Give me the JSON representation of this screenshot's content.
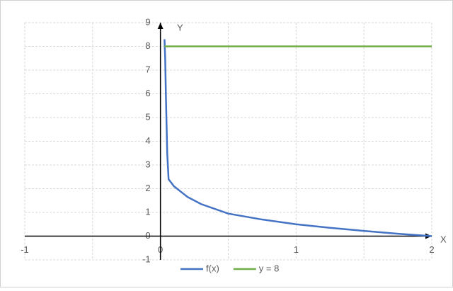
{
  "chart_data": {
    "type": "line",
    "x_label": "X",
    "y_label": "Y",
    "xlim": [
      -1,
      2
    ],
    "ylim": [
      -1,
      9
    ],
    "xticks": [
      -1,
      0,
      1,
      2
    ],
    "yticks": [
      -1,
      0,
      1,
      2,
      3,
      4,
      5,
      6,
      7,
      8,
      9
    ],
    "x_grid_step": 0.5,
    "grid": true,
    "legend": "bottom",
    "series": [
      {
        "name": "f(x)",
        "color": "#4472c4",
        "x": [
          0.03,
          0.035,
          0.04,
          0.05,
          0.06,
          0.1,
          0.2,
          0.3,
          0.5,
          0.75,
          1,
          1.25,
          1.5,
          1.75,
          2
        ],
        "values": [
          8.3,
          7.5,
          6,
          3.5,
          2.4,
          2.1,
          1.65,
          1.35,
          0.95,
          0.7,
          0.5,
          0.35,
          0.22,
          0.1,
          0
        ]
      },
      {
        "name": "y = 8",
        "color": "#70ad47",
        "x": [
          0.03,
          2
        ],
        "values": [
          8,
          8
        ]
      }
    ]
  }
}
